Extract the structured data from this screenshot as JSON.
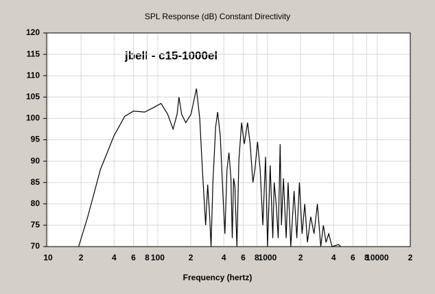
{
  "chart_data": {
    "type": "line",
    "title": "SPL Response (dB)   Constant Directivity",
    "annotation": "jbell - c15-1000el",
    "x_label": "Frequency (hertz)",
    "xscale": "log",
    "grid": true,
    "xlim": [
      10,
      20000
    ],
    "ylim": [
      70,
      120
    ],
    "xticks": [
      10,
      {
        "value": 20,
        "label": "2"
      },
      {
        "value": 40,
        "label": "4"
      },
      {
        "value": 60,
        "label": "6"
      },
      {
        "value": 80,
        "label": "8"
      },
      100,
      {
        "value": 200,
        "label": "2"
      },
      {
        "value": 400,
        "label": "4"
      },
      {
        "value": 600,
        "label": "6"
      },
      {
        "value": 800,
        "label": "8"
      },
      1000,
      {
        "value": 2000,
        "label": "2"
      },
      {
        "value": 4000,
        "label": "4"
      },
      {
        "value": 6000,
        "label": "6"
      },
      {
        "value": 8000,
        "label": "8"
      },
      10000,
      {
        "value": 20000,
        "label": "2"
      }
    ],
    "yticks": [
      70,
      75,
      80,
      85,
      90,
      95,
      100,
      105,
      110,
      115,
      120
    ],
    "x": [
      19,
      23,
      30,
      40,
      50,
      60,
      76,
      91,
      107,
      123,
      138,
      150,
      156,
      165,
      180,
      201,
      225,
      241,
      255,
      273,
      285,
      297,
      306,
      318,
      337,
      351,
      371,
      393,
      409,
      427,
      445,
      464,
      477,
      491,
      505,
      526,
      548,
      580,
      614,
      658,
      695,
      736,
      767,
      811,
      857,
      907,
      959,
      1000,
      1057,
      1117,
      1150,
      1199,
      1251,
      1304,
      1340,
      1397,
      1479,
      1541,
      1630,
      1746,
      1849,
      1954,
      2066,
      2184,
      2312,
      2477,
      2655,
      2848,
      3054,
      3228,
      3413,
      3613,
      3873,
      4446,
      4645
    ],
    "series": [
      {
        "color": "#000000",
        "values": [
          70,
          77,
          88,
          96,
          100.5,
          101.7,
          101.5,
          102.5,
          103.5,
          101,
          97.5,
          101,
          105,
          101,
          99,
          101,
          107,
          100,
          88,
          75,
          84.5,
          77,
          70,
          85,
          98,
          101.5,
          96,
          82,
          73,
          88,
          92,
          86,
          72,
          86,
          84,
          70,
          90,
          99,
          94,
          99,
          94,
          85,
          88,
          94.5,
          88,
          75,
          91,
          70,
          89,
          72,
          85,
          80,
          72,
          94,
          75,
          86,
          72,
          85,
          70,
          83,
          72,
          85,
          73,
          80,
          71,
          77,
          73,
          80,
          70,
          75,
          71,
          73,
          70,
          70.5,
          70
        ]
      }
    ]
  }
}
